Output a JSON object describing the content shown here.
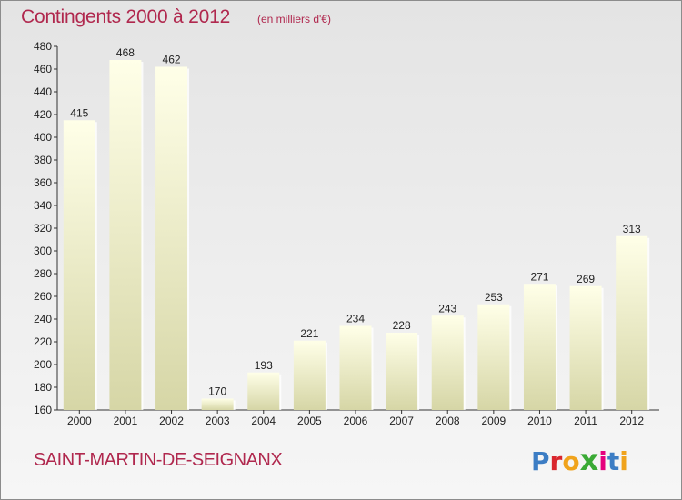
{
  "header": {
    "title": "Contingents 2000 à 2012",
    "subtitle": "(en milliers d'€)"
  },
  "footer": {
    "place": "SAINT-MARTIN-DE-SEIGNANX",
    "logo": "Proxiti",
    "logo_colors": [
      "#3c7dc4",
      "#d9262e",
      "#f0a31c",
      "#3aaa35",
      "#e5007d",
      "#3c7dc4",
      "#f0a31c"
    ]
  },
  "colors": {
    "title": "#b0284e",
    "bar_top": "#ffffe8",
    "bar_bottom": "#d6d6a6",
    "axis": "#333333"
  },
  "chart_data": {
    "type": "bar",
    "title": "Contingents 2000 à 2012",
    "subtitle": "(en milliers d'€)",
    "categories": [
      "2000",
      "2001",
      "2002",
      "2003",
      "2004",
      "2005",
      "2006",
      "2007",
      "2008",
      "2009",
      "2010",
      "2011",
      "2012"
    ],
    "values": [
      415,
      468,
      462,
      170,
      193,
      221,
      234,
      228,
      243,
      253,
      271,
      269,
      313
    ],
    "ylim": [
      160,
      480
    ],
    "yticks": [
      160,
      180,
      200,
      220,
      240,
      260,
      280,
      300,
      320,
      340,
      360,
      380,
      400,
      420,
      440,
      460,
      480
    ],
    "grid": false,
    "data_labels": true
  }
}
